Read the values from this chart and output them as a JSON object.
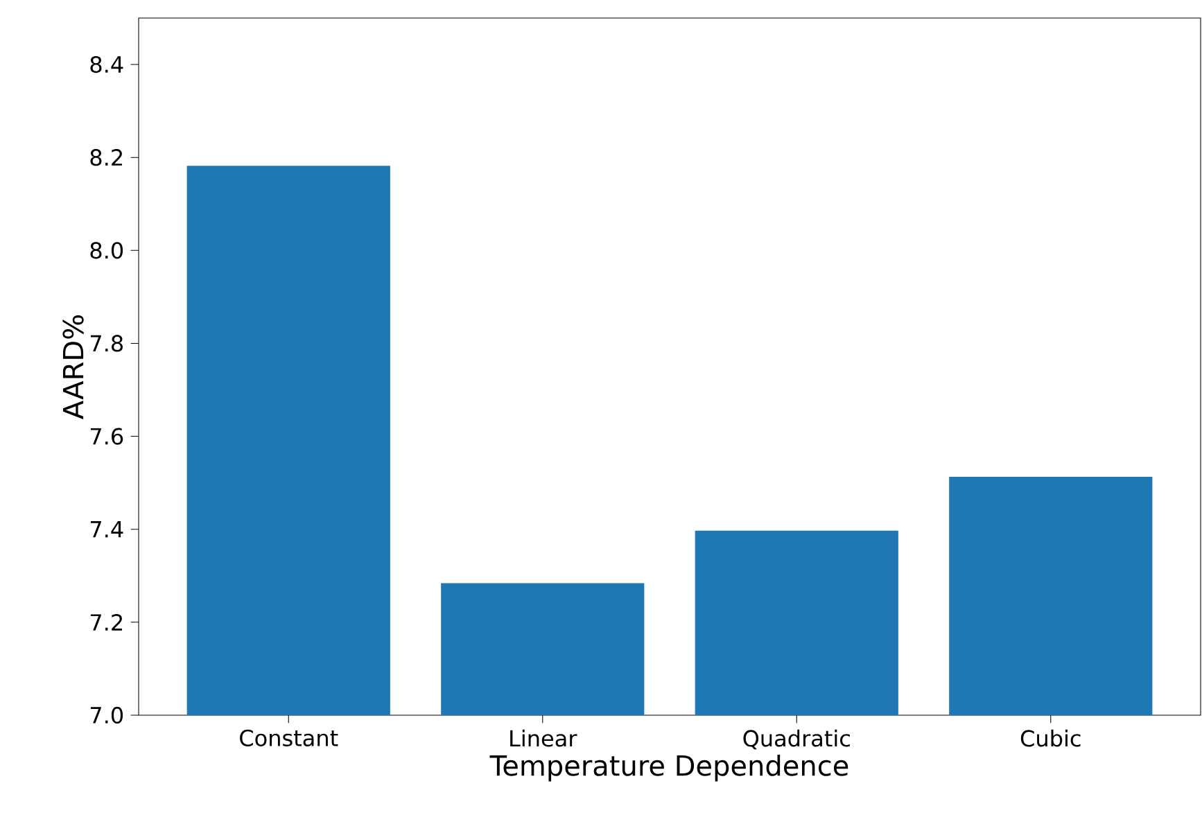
{
  "chart_data": {
    "type": "bar",
    "xlabel": "Temperature Dependence",
    "ylabel": "AARD%",
    "categories": [
      "Constant",
      "Linear",
      "Quadratic",
      "Cubic"
    ],
    "values": [
      8.182,
      7.284,
      7.397,
      7.513
    ],
    "color": "#1f77b4",
    "ylim": [
      7.0,
      8.5
    ],
    "yticks": [
      {
        "value": 7.0,
        "label": "7.0"
      },
      7.2,
      7.4,
      7.6,
      7.8,
      {
        "value": 8.0,
        "label": "8.0"
      },
      8.2,
      8.4
    ],
    "grid": false
  }
}
